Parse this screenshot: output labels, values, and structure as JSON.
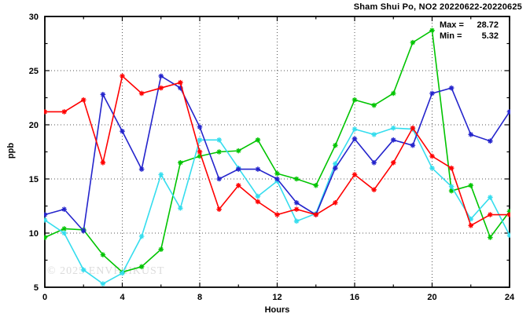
{
  "title": "Sham Shui Po, NO2 20220622-20220625",
  "annotation": {
    "max_label": "Max =",
    "max_value": "28.72",
    "min_label": "Min =",
    "min_value": "5.32"
  },
  "watermark": "© 2025 ENVF HKUST",
  "chart_data": {
    "type": "line",
    "title": "Sham Shui Po, NO2 20220622-20220625",
    "xlabel": "Hours",
    "ylabel": "ppb",
    "xlim": [
      0,
      24
    ],
    "ylim": [
      5,
      30
    ],
    "xticks": [
      0,
      4,
      8,
      12,
      16,
      20,
      24
    ],
    "yticks": [
      5,
      10,
      15,
      20,
      25,
      30
    ],
    "minor_xtick_step": 2,
    "minor_ytick_step": 2.5,
    "grid": "dotted-at-major-ticks",
    "legend_position": "none",
    "annotations": [
      "Max = 28.72",
      "Min = 5.32"
    ],
    "marker": "star",
    "x": [
      0,
      1,
      2,
      3,
      4,
      5,
      6,
      7,
      8,
      9,
      10,
      11,
      12,
      13,
      14,
      15,
      16,
      17,
      18,
      19,
      20,
      21,
      22,
      23,
      24
    ],
    "series": [
      {
        "name": "green",
        "color": "#00c400",
        "values": [
          9.6,
          10.4,
          10.3,
          8.0,
          6.4,
          6.9,
          8.5,
          16.5,
          17.1,
          17.5,
          17.6,
          18.6,
          15.5,
          15.0,
          14.4,
          18.1,
          22.3,
          21.8,
          22.9,
          27.6,
          28.72,
          13.9,
          14.4,
          9.6,
          12.0
        ]
      },
      {
        "name": "cyan",
        "color": "#35ddee",
        "values": [
          11.2,
          10.0,
          6.6,
          5.32,
          6.3,
          9.7,
          15.4,
          12.3,
          18.6,
          18.6,
          16.0,
          13.4,
          14.8,
          11.1,
          11.8,
          16.4,
          19.6,
          19.1,
          19.7,
          19.6,
          16.0,
          14.3,
          11.3,
          13.3,
          9.8
        ]
      },
      {
        "name": "blue",
        "color": "#2424cc",
        "values": [
          11.7,
          12.2,
          10.2,
          22.8,
          19.4,
          15.9,
          24.5,
          23.4,
          19.8,
          15.0,
          15.9,
          15.9,
          15.0,
          12.8,
          11.7,
          16.0,
          18.7,
          16.5,
          18.6,
          18.1,
          22.9,
          23.4,
          19.1,
          18.5,
          21.2
        ]
      },
      {
        "name": "red",
        "color": "#ff0000",
        "values": [
          21.2,
          21.2,
          22.3,
          16.5,
          24.5,
          22.9,
          23.4,
          23.9,
          17.5,
          12.2,
          14.4,
          12.9,
          11.7,
          12.2,
          11.7,
          12.8,
          15.4,
          14.0,
          16.5,
          19.7,
          17.1,
          16.0,
          10.7,
          11.7,
          11.7
        ]
      }
    ]
  }
}
